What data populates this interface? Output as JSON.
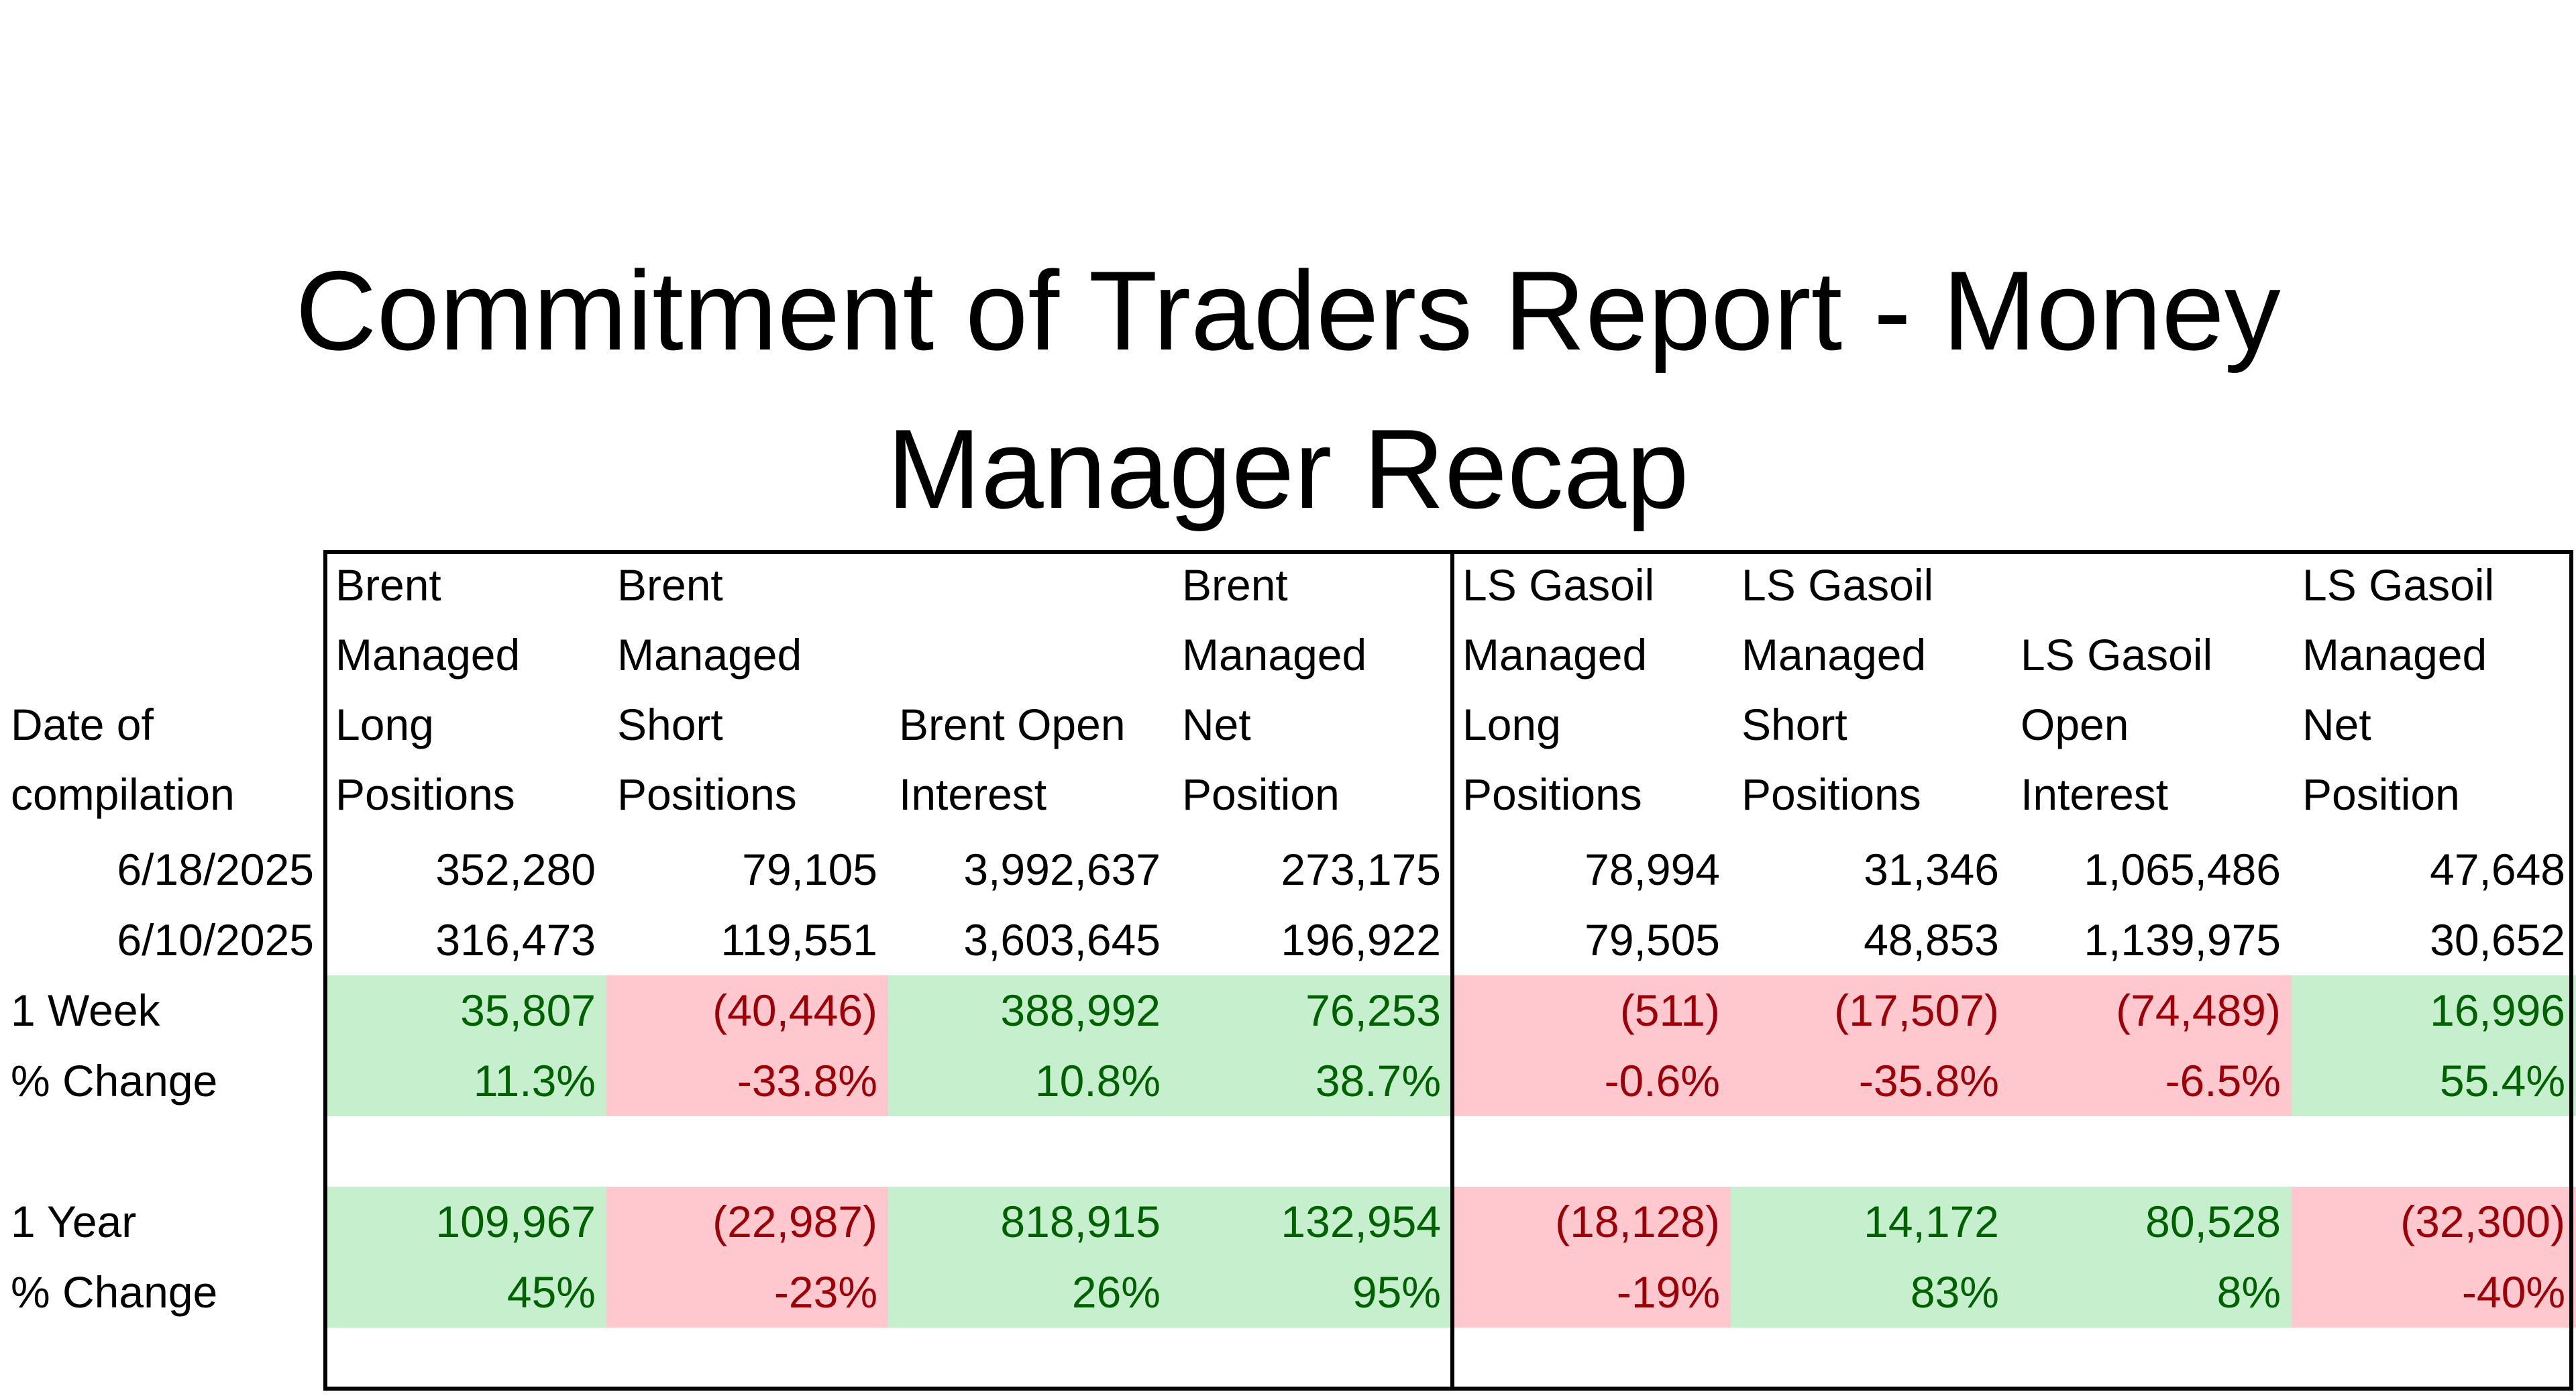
{
  "title": {
    "line1": "Commitment of Traders Report - Money",
    "line2": "Manager Recap"
  },
  "table": {
    "row_label_header": [
      "Date of",
      "compilation"
    ],
    "columns": [
      {
        "header": [
          "Brent",
          "Managed",
          "Long",
          "Positions"
        ]
      },
      {
        "header": [
          "Brent",
          "Managed",
          "Short",
          "Positions"
        ]
      },
      {
        "header": [
          "Brent Open",
          "Interest"
        ]
      },
      {
        "header": [
          "Brent",
          "Managed",
          "Net",
          "Position"
        ]
      },
      {
        "header": [
          "LS Gasoil",
          "Managed",
          "Long",
          "Positions"
        ]
      },
      {
        "header": [
          "LS Gasoil",
          "Managed",
          "Short",
          "Positions"
        ]
      },
      {
        "header": [
          "LS Gasoil",
          "Open",
          "Interest"
        ]
      },
      {
        "header": [
          "LS Gasoil",
          "Managed",
          "Net",
          "Position"
        ]
      }
    ],
    "rows": [
      {
        "label": "6/18/2025",
        "cells": [
          "352,280",
          "79,105",
          "3,992,637",
          "273,175",
          "78,994",
          "31,346",
          "1,065,486",
          "47,648"
        ]
      },
      {
        "label": "6/10/2025",
        "cells": [
          "316,473",
          "119,551",
          "3,603,645",
          "196,922",
          "79,505",
          "48,853",
          "1,139,975",
          "30,652"
        ]
      },
      {
        "label": "1 Week",
        "cells": [
          "35,807",
          "(40,446)",
          "388,992",
          "76,253",
          "(511)",
          "(17,507)",
          "(74,489)",
          "16,996"
        ]
      },
      {
        "label": "% Change",
        "cells": [
          "11.3%",
          "-33.8%",
          "10.8%",
          "38.7%",
          "-0.6%",
          "-35.8%",
          "-6.5%",
          "55.4%"
        ]
      },
      {
        "label": "1 Year",
        "cells": [
          "109,967",
          "(22,987)",
          "818,915",
          "132,954",
          "(18,128)",
          "14,172",
          "80,528",
          "(32,300)"
        ]
      },
      {
        "label": "% Change",
        "cells": [
          "45%",
          "-23%",
          "26%",
          "95%",
          "-19%",
          "83%",
          "8%",
          "-40%"
        ]
      }
    ],
    "colors": {
      "positive_fill": "#c6efce",
      "positive_text": "#006100",
      "negative_fill": "#ffc7ce",
      "negative_text": "#9c0006"
    }
  }
}
